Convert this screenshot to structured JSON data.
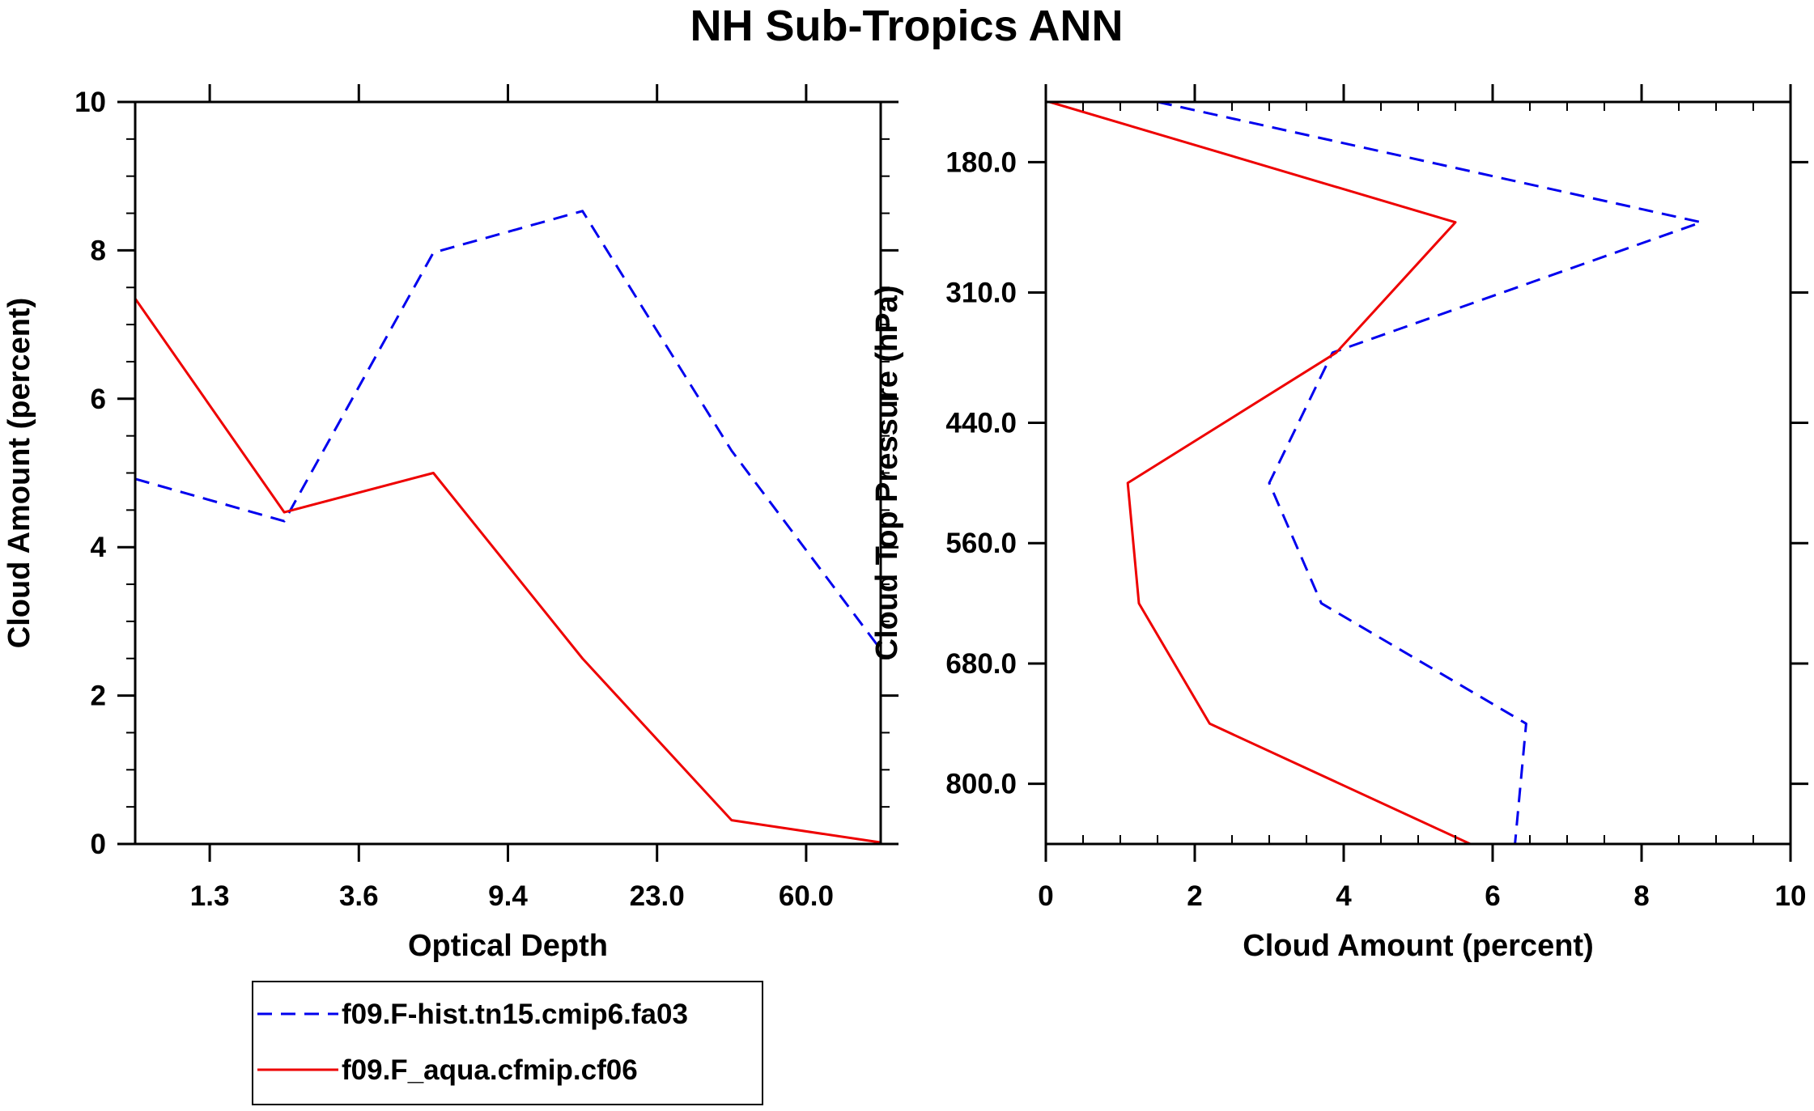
{
  "title": "NH Sub-Tropics ANN",
  "colors": {
    "series_a": "#0000ee",
    "series_b": "#ee0000",
    "axis": "#000000"
  },
  "legend": {
    "items": [
      {
        "label": "f09.F-hist.tn15.cmip6.fa03",
        "color": "#0000ee",
        "style": "dashed"
      },
      {
        "label": "f09.F_aqua.cfmip.cf06",
        "color": "#ee0000",
        "style": "solid"
      }
    ]
  },
  "chart_data": [
    {
      "type": "line",
      "title": "",
      "xlabel": "Optical Depth",
      "ylabel": "Cloud Amount (percent)",
      "x_index": [
        0,
        1,
        2,
        3,
        4,
        5
      ],
      "xlim": [
        0,
        5
      ],
      "ylim": [
        0,
        10
      ],
      "x_ticks": [
        {
          "pos": 0.5,
          "label": "1.3"
        },
        {
          "pos": 1.5,
          "label": "3.6"
        },
        {
          "pos": 2.5,
          "label": "9.4"
        },
        {
          "pos": 3.5,
          "label": "23.0"
        },
        {
          "pos": 4.5,
          "label": "60.0"
        }
      ],
      "y_ticks": [
        0,
        2,
        4,
        6,
        8,
        10
      ],
      "y_tick_labels": [
        "0",
        "2",
        "4",
        "6",
        "8",
        "10"
      ],
      "series": [
        {
          "name": "f09.F-hist.tn15.cmip6.fa03",
          "values": [
            4.92,
            4.35,
            7.97,
            8.53,
            5.3,
            2.62
          ]
        },
        {
          "name": "f09.F_aqua.cfmip.cf06",
          "values": [
            7.35,
            4.47,
            5.0,
            2.5,
            0.32,
            0.02
          ]
        }
      ]
    },
    {
      "type": "line",
      "title": "",
      "xlabel": "Cloud Amount (percent)",
      "ylabel": "Cloud Top Pressure (hPa)",
      "xlim": [
        0,
        10
      ],
      "ylim": [
        120,
        860
      ],
      "x_ticks": [
        0,
        2,
        4,
        6,
        8,
        10
      ],
      "x_tick_labels": [
        "0",
        "2",
        "4",
        "6",
        "8",
        "10"
      ],
      "y_ticks": [
        180,
        310,
        440,
        560,
        680,
        800
      ],
      "y_tick_labels": [
        "180.0",
        "310.0",
        "440.0",
        "560.0",
        "680.0",
        "800.0"
      ],
      "pressure_levels": [
        120,
        240,
        370,
        500,
        620,
        740,
        860
      ],
      "series": [
        {
          "name": "f09.F-hist.tn15.cmip6.fa03",
          "values": [
            1.5,
            8.8,
            3.85,
            3.0,
            3.7,
            6.45,
            6.3
          ]
        },
        {
          "name": "f09.F_aqua.cfmip.cf06",
          "values": [
            0.05,
            5.5,
            3.9,
            1.1,
            1.25,
            2.2,
            5.7
          ]
        }
      ]
    }
  ]
}
